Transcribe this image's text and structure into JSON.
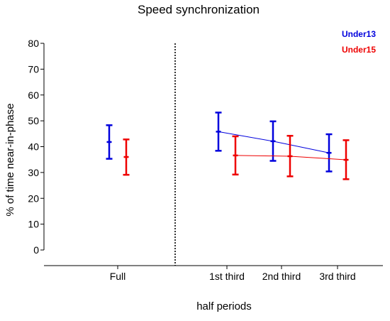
{
  "chart_data": {
    "type": "scatter",
    "title": "Speed synchronization",
    "xlabel": "half periods",
    "ylabel": "% of time near-in-phase",
    "ylim": [
      0,
      80
    ],
    "yticks": [
      "0",
      "10",
      "20",
      "30",
      "40",
      "50",
      "60",
      "70",
      "80"
    ],
    "categories": [
      "Full",
      "1st third",
      "2nd third",
      "3rd third"
    ],
    "divider": "dotted vertical line between Full and 1st third",
    "legend_position": "top-right",
    "grid": false,
    "series": [
      {
        "name": "Under13",
        "color": "#0000dd",
        "means": [
          41.8,
          45.8,
          42.1,
          37.6
        ],
        "lower": [
          35.3,
          38.4,
          34.5,
          30.4
        ],
        "upper": [
          48.3,
          53.2,
          49.8,
          44.8
        ],
        "connected_categories": [
          "1st third",
          "2nd third",
          "3rd third"
        ]
      },
      {
        "name": "Under15",
        "color": "#ee0000",
        "means": [
          36.0,
          36.6,
          36.3,
          34.9
        ],
        "lower": [
          29.1,
          29.2,
          28.5,
          27.4
        ],
        "upper": [
          42.8,
          44.0,
          44.2,
          42.5
        ],
        "connected_categories": [
          "1st third",
          "2nd third",
          "3rd third"
        ]
      }
    ]
  }
}
